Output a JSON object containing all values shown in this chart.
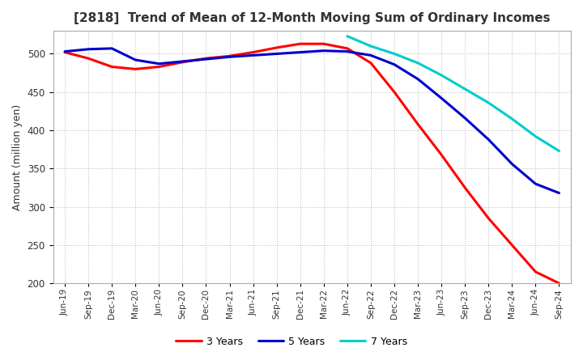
{
  "title": "[2818]  Trend of Mean of 12-Month Moving Sum of Ordinary Incomes",
  "ylabel": "Amount (million yen)",
  "ylim": [
    200,
    530
  ],
  "yticks": [
    200,
    250,
    300,
    350,
    400,
    450,
    500
  ],
  "background_color": "#ffffff",
  "grid_color": "#bbbbbb",
  "line_colors": {
    "3 Years": "#ff0000",
    "5 Years": "#0000cc",
    "7 Years": "#00cccc",
    "10 Years": "#008800"
  },
  "x_labels": [
    "Jun-19",
    "Sep-19",
    "Dec-19",
    "Mar-20",
    "Jun-20",
    "Sep-20",
    "Dec-20",
    "Mar-21",
    "Jun-21",
    "Sep-21",
    "Dec-21",
    "Mar-22",
    "Jun-22",
    "Sep-22",
    "Dec-22",
    "Mar-23",
    "Jun-23",
    "Sep-23",
    "Dec-23",
    "Mar-24",
    "Jun-24",
    "Sep-24"
  ],
  "series": {
    "3 Years": [
      502,
      494,
      483,
      480,
      483,
      489,
      494,
      497,
      502,
      508,
      513,
      513,
      507,
      488,
      450,
      408,
      368,
      325,
      285,
      250,
      215,
      200
    ],
    "5 Years": [
      503,
      506,
      507,
      492,
      487,
      490,
      493,
      496,
      498,
      500,
      502,
      504,
      503,
      498,
      486,
      467,
      442,
      416,
      388,
      356,
      330,
      318
    ],
    "7 Years": [
      null,
      null,
      null,
      null,
      null,
      null,
      null,
      null,
      null,
      null,
      null,
      null,
      523,
      510,
      500,
      488,
      472,
      454,
      436,
      415,
      392,
      373
    ],
    "10 Years": [
      null,
      null,
      null,
      null,
      null,
      null,
      null,
      null,
      null,
      null,
      null,
      null,
      null,
      null,
      null,
      null,
      null,
      null,
      null,
      null,
      null,
      null
    ]
  }
}
